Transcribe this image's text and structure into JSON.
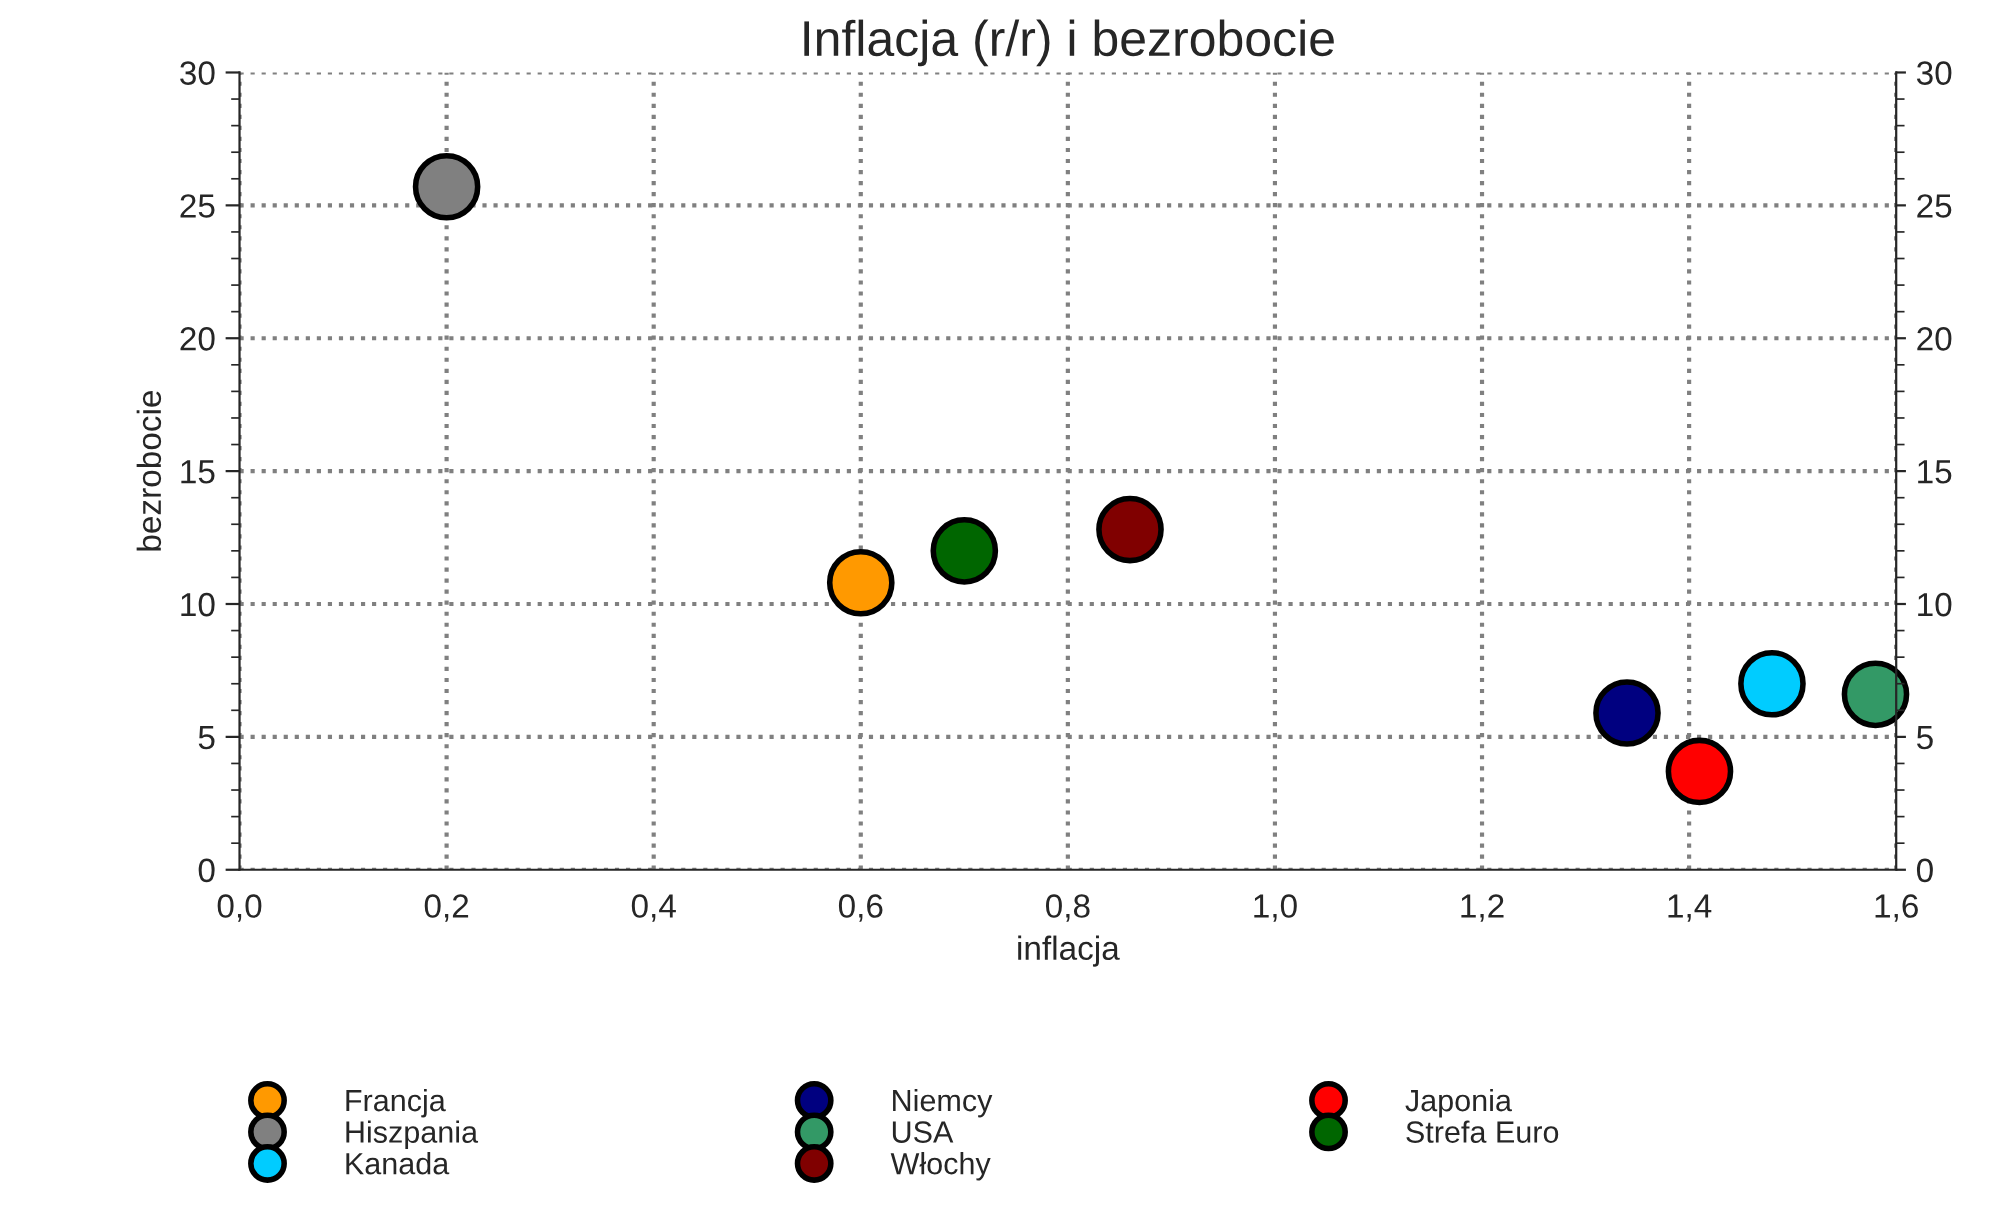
{
  "chart_data": {
    "type": "scatter",
    "title": "Inflacja (r/r) i bezrobocie",
    "xlabel": "inflacja",
    "ylabel": "bezrobocie",
    "series": [
      {
        "name": "Francja",
        "color": "#ff9900",
        "x": [
          0.6
        ],
        "values": [
          10.8
        ]
      },
      {
        "name": "Hiszpania",
        "color": "#808080",
        "x": [
          0.2
        ],
        "values": [
          25.7
        ]
      },
      {
        "name": "Kanada",
        "color": "#00ccff",
        "x": [
          1.48
        ],
        "values": [
          7.0
        ]
      },
      {
        "name": "Niemcy",
        "color": "#000080",
        "x": [
          1.34
        ],
        "values": [
          5.9
        ]
      },
      {
        "name": "USA",
        "color": "#339966",
        "x": [
          1.58
        ],
        "values": [
          6.6
        ]
      },
      {
        "name": "Włochy",
        "color": "#800000",
        "x": [
          0.86
        ],
        "values": [
          12.8
        ]
      },
      {
        "name": "Japonia",
        "color": "#ff0000",
        "x": [
          1.41
        ],
        "values": [
          3.7
        ]
      },
      {
        "name": "Strefa Euro",
        "color": "#006600",
        "x": [
          0.7
        ],
        "values": [
          12.0
        ]
      }
    ],
    "xlim": [
      0,
      1.6
    ],
    "xticks": [
      {
        "value": 0,
        "label": "0,0"
      },
      {
        "value": 0.2,
        "label": "0,2"
      },
      {
        "value": 0.4,
        "label": "0,4"
      },
      {
        "value": 0.6,
        "label": "0,6"
      },
      {
        "value": 0.8,
        "label": "0,8"
      },
      {
        "value": 1.0,
        "label": "1,0"
      },
      {
        "value": 1.2,
        "label": "1,2"
      },
      {
        "value": 1.4,
        "label": "1,4"
      },
      {
        "value": 1.6,
        "label": "1,6"
      }
    ],
    "ylim": [
      0,
      30
    ],
    "yticks": [
      0,
      5,
      10,
      15,
      20,
      25,
      30
    ],
    "y2lim": [
      0,
      30
    ],
    "y2ticks": [
      0,
      5,
      10,
      15,
      20,
      25,
      30
    ],
    "grid": true,
    "legend": "bottom",
    "marker": "circle"
  }
}
